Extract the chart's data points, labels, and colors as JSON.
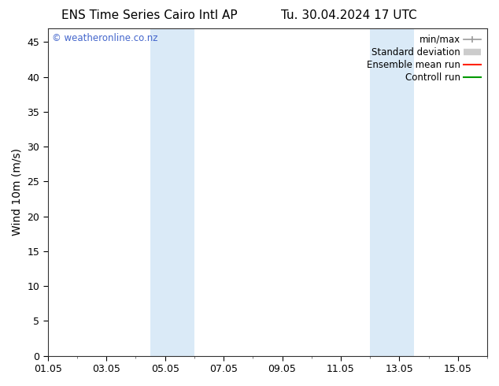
{
  "title_left": "ENS Time Series Cairo Intl AP",
  "title_right": "Tu. 30.04.2024 17 UTC",
  "ylabel": "Wind 10m (m/s)",
  "ylim": [
    0,
    47
  ],
  "yticks": [
    0,
    5,
    10,
    15,
    20,
    25,
    30,
    35,
    40,
    45
  ],
  "xlim": [
    0,
    15
  ],
  "xtick_positions": [
    0,
    2,
    4,
    6,
    8,
    10,
    12,
    14
  ],
  "xtick_labels": [
    "01.05",
    "03.05",
    "05.05",
    "07.05",
    "09.05",
    "11.05",
    "13.05",
    "15.05"
  ],
  "background_color": "#ffffff",
  "plot_bg_color": "#ffffff",
  "shaded_bands": [
    {
      "x_start": 3.5,
      "x_end": 5.0,
      "color": "#daeaf7"
    },
    {
      "x_start": 11.0,
      "x_end": 12.5,
      "color": "#daeaf7"
    }
  ],
  "legend_labels": [
    "min/max",
    "Standard deviation",
    "Ensemble mean run",
    "Controll run"
  ],
  "legend_colors": [
    "#999999",
    "#cccccc",
    "#ff2200",
    "#009900"
  ],
  "watermark": "© weatheronline.co.nz",
  "watermark_color": "#4466cc",
  "title_fontsize": 11,
  "axis_fontsize": 10,
  "tick_fontsize": 9,
  "legend_fontsize": 8.5
}
